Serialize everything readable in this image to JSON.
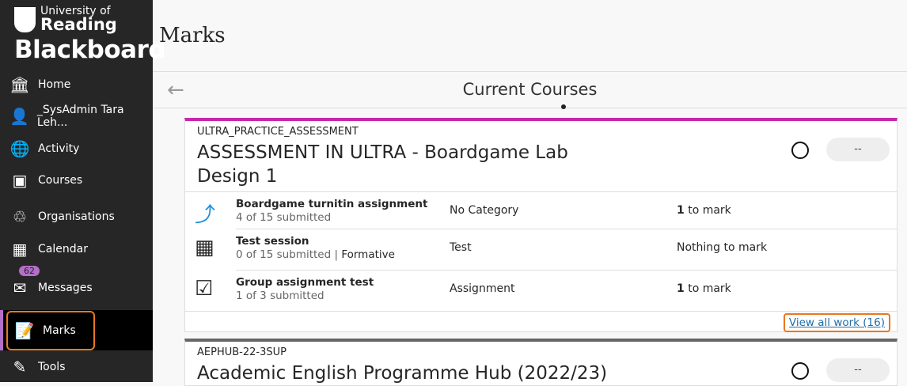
{
  "brand": {
    "university": "University of",
    "reading": "Reading",
    "product": "Blackboard"
  },
  "sidebar": {
    "items": [
      {
        "label": "Home",
        "icon": "institution-icon"
      },
      {
        "label": "_SysAdmin Tara Leh...",
        "icon": "user-icon"
      },
      {
        "label": "Activity",
        "icon": "globe-icon"
      },
      {
        "label": "Courses",
        "icon": "courses-icon"
      },
      {
        "label": "Organisations",
        "icon": "organisations-icon"
      },
      {
        "label": "Calendar",
        "icon": "calendar-icon"
      },
      {
        "label": "Messages",
        "icon": "envelope-icon",
        "badge": "62"
      },
      {
        "label": "Marks",
        "icon": "marks-icon",
        "active": true
      },
      {
        "label": "Tools",
        "icon": "tools-icon"
      }
    ]
  },
  "page": {
    "title": "Marks",
    "section": "Current Courses"
  },
  "courses": [
    {
      "code": "ULTRA_PRACTICE_ASSESSMENT",
      "title": "ASSESSMENT IN ULTRA - Boardgame Lab Design 1",
      "grade": "--",
      "accent": "#c727ad",
      "items": [
        {
          "name": "Boardgame turnitin assignment",
          "submitted": "4 of 15 submitted",
          "tag": "",
          "category": "No Category",
          "count": "1",
          "mark": " to mark"
        },
        {
          "name": "Test session",
          "submitted": "0 of 15 submitted",
          "tag": "Formative",
          "category": "Test",
          "count": "",
          "mark": "Nothing to mark"
        },
        {
          "name": "Group assignment test",
          "submitted": "1 of 3 submitted",
          "tag": "",
          "category": "Assignment",
          "count": "1",
          "mark": " to mark"
        }
      ],
      "view_all": "View all work (16)"
    },
    {
      "code": "AEPHUB-22-3SUP",
      "title": "Academic English Programme Hub (2022/23)",
      "grade": "--"
    }
  ]
}
